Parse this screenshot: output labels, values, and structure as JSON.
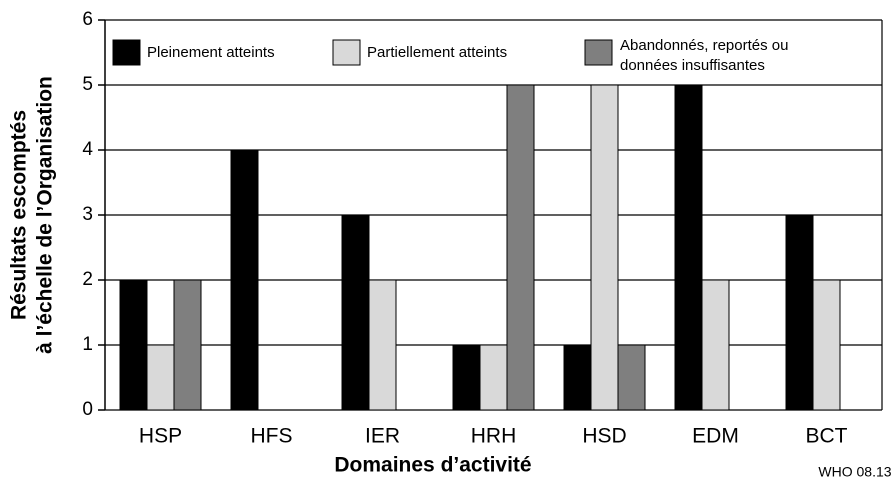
{
  "chart_data": {
    "type": "bar",
    "y_label": [
      "Résultats escomptés",
      "à l’échelle de l’Organisation"
    ],
    "x_label": "Domaines d’activité",
    "annotation": "WHO 08.13",
    "categories": [
      "HSP",
      "HFS",
      "IER",
      "HRH",
      "HSD",
      "EDM",
      "BCT"
    ],
    "series": [
      {
        "name": "Pleinement atteints",
        "color": "#000000",
        "values": [
          2,
          4,
          3,
          1,
          1,
          5,
          3
        ]
      },
      {
        "name": "Partiellement atteints",
        "color": "#d9d9d9",
        "values": [
          1,
          0,
          2,
          1,
          5,
          2,
          2
        ]
      },
      {
        "name": "Abandonnés, reportés ou données insuffisantes",
        "color": "#7f7f7f",
        "values": [
          2,
          0,
          0,
          5,
          1,
          0,
          0
        ]
      }
    ],
    "ylim": [
      0,
      6
    ],
    "yticks": [
      0,
      1,
      2,
      3,
      4,
      5,
      6
    ],
    "grid": true,
    "legend": "top"
  }
}
